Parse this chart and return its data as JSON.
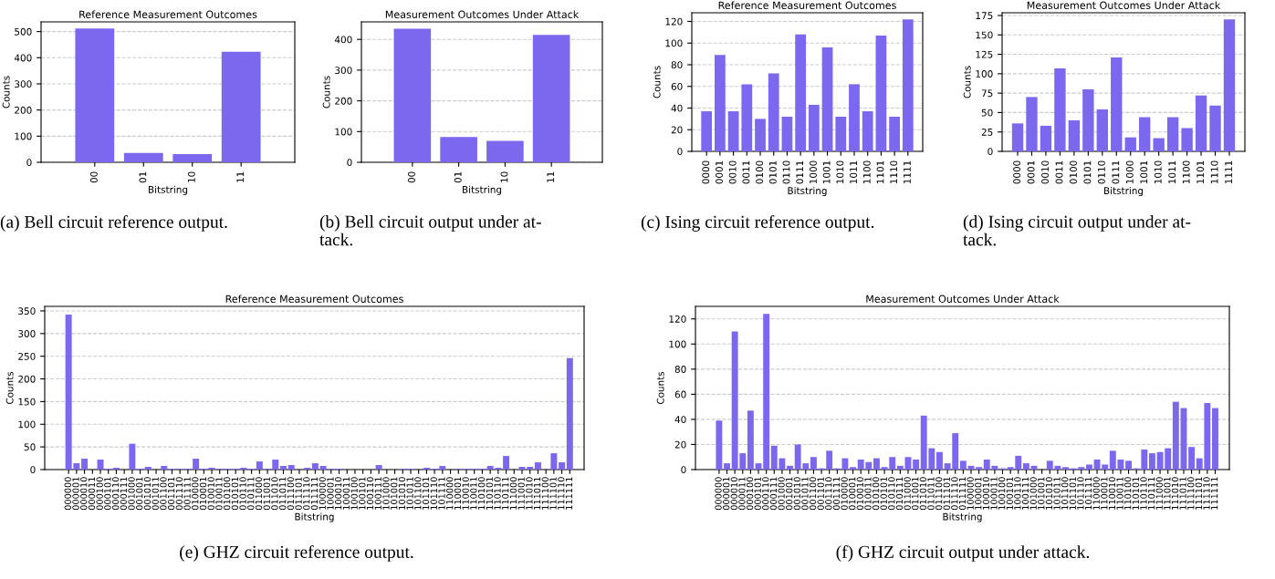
{
  "chart_data": [
    {
      "type": "bar",
      "title": "Reference Measurement Outcomes",
      "xlabel": "Bitstring",
      "ylabel": "Counts",
      "color": "#7b68ee",
      "grid": "y",
      "categories": [
        "00",
        "01",
        "10",
        "11"
      ],
      "values": [
        512,
        36,
        31,
        423
      ],
      "ylim": [
        0,
        537
      ],
      "yticks": [
        0,
        100,
        200,
        300,
        400,
        500
      ],
      "annotations": [
        "(a) Bell circuit reference output."
      ]
    },
    {
      "type": "bar",
      "title": "Measurement Outcomes Under Attack",
      "xlabel": "Bitstring",
      "ylabel": "Counts",
      "color": "#7b68ee",
      "grid": "y",
      "categories": [
        "00",
        "01",
        "10",
        "11"
      ],
      "values": [
        435,
        82,
        70,
        415
      ],
      "ylim": [
        0,
        457
      ],
      "yticks": [
        0,
        100,
        200,
        300,
        400
      ],
      "annotations": [
        "(b) Bell circuit output under at-\ntack."
      ]
    },
    {
      "type": "bar",
      "title": "Reference Measurement Outcomes",
      "xlabel": "Bitstring",
      "ylabel": "Counts",
      "color": "#7b68ee",
      "grid": "y",
      "categories": [
        "0000",
        "0001",
        "0010",
        "0011",
        "0100",
        "0101",
        "0110",
        "0111",
        "1000",
        "1001",
        "1010",
        "1011",
        "1100",
        "1101",
        "1110",
        "1111"
      ],
      "values": [
        37,
        89,
        37,
        62,
        30,
        72,
        32,
        108,
        43,
        96,
        32,
        62,
        37,
        107,
        32,
        122
      ],
      "ylim": [
        0,
        128
      ],
      "yticks": [
        0,
        20,
        40,
        60,
        80,
        100,
        120
      ],
      "annotations": [
        "(c) Ising circuit reference output."
      ]
    },
    {
      "type": "bar",
      "title": "Measurement Outcomes Under Attack",
      "xlabel": "Bitstring",
      "ylabel": "Counts",
      "color": "#7b68ee",
      "grid": "y",
      "categories": [
        "0000",
        "0001",
        "0010",
        "0011",
        "0100",
        "0101",
        "0110",
        "0111",
        "1000",
        "1001",
        "1010",
        "1011",
        "1100",
        "1101",
        "1110",
        "1111"
      ],
      "values": [
        36,
        70,
        33,
        107,
        40,
        80,
        54,
        121,
        18,
        44,
        17,
        44,
        30,
        72,
        59,
        170
      ],
      "ylim": [
        0,
        178.5
      ],
      "yticks": [
        0,
        25,
        50,
        75,
        100,
        125,
        150,
        175
      ],
      "annotations": [
        "(d) Ising circuit output under at-\ntack."
      ]
    },
    {
      "type": "bar",
      "title": "Reference Measurement Outcomes",
      "xlabel": "Bitstring",
      "ylabel": "Counts",
      "color": "#7b68ee",
      "grid": "y",
      "categories": [
        "000000",
        "000001",
        "000010",
        "000011",
        "000100",
        "000101",
        "000110",
        "000111",
        "001000",
        "001001",
        "001010",
        "001011",
        "001100",
        "001101",
        "001110",
        "001111",
        "010000",
        "010001",
        "010010",
        "010011",
        "010100",
        "010101",
        "010110",
        "010111",
        "011000",
        "011001",
        "011010",
        "011011",
        "011100",
        "011101",
        "011110",
        "011111",
        "100000",
        "100001",
        "100010",
        "100011",
        "100100",
        "100101",
        "100110",
        "100111",
        "101000",
        "101001",
        "101010",
        "101011",
        "101100",
        "101101",
        "101110",
        "101111",
        "110000",
        "110001",
        "110010",
        "110011",
        "110100",
        "110101",
        "110110",
        "110111",
        "111000",
        "111001",
        "111010",
        "111011",
        "111100",
        "111101",
        "111110",
        "111111"
      ],
      "values": [
        342,
        14,
        24,
        0,
        22,
        2,
        4,
        0,
        57,
        2,
        6,
        0,
        8,
        2,
        2,
        2,
        24,
        2,
        4,
        2,
        2,
        2,
        4,
        2,
        18,
        2,
        22,
        8,
        10,
        0,
        4,
        14,
        8,
        2,
        2,
        0,
        0,
        0,
        0,
        10,
        0,
        0,
        2,
        2,
        0,
        4,
        2,
        8,
        0,
        2,
        2,
        2,
        2,
        8,
        4,
        30,
        0,
        6,
        6,
        16,
        0,
        36,
        16,
        246
      ],
      "ylim": [
        0,
        360
      ],
      "yticks": [
        0,
        50,
        100,
        150,
        200,
        250,
        300,
        350
      ],
      "annotations": [
        "(e) GHZ circuit reference output."
      ]
    },
    {
      "type": "bar",
      "title": "Measurement Outcomes Under Attack",
      "xlabel": "Bitstring",
      "ylabel": "Counts",
      "color": "#7b68ee",
      "grid": "y",
      "categories": [
        "000000",
        "000001",
        "000010",
        "000011",
        "000100",
        "000101",
        "000110",
        "000111",
        "001000",
        "001001",
        "001010",
        "001011",
        "001100",
        "001101",
        "001110",
        "001111",
        "010000",
        "010001",
        "010010",
        "010011",
        "010100",
        "010101",
        "010110",
        "010111",
        "011000",
        "011001",
        "011010",
        "011011",
        "011100",
        "011101",
        "011110",
        "011111",
        "100000",
        "100001",
        "100010",
        "100011",
        "100100",
        "100101",
        "100110",
        "100111",
        "101000",
        "101001",
        "101010",
        "101011",
        "101100",
        "101101",
        "101110",
        "101111",
        "110000",
        "110001",
        "110010",
        "110011",
        "110100",
        "110101",
        "110110",
        "110111",
        "111000",
        "111001",
        "111010",
        "111011",
        "111100",
        "111101",
        "111110",
        "111111"
      ],
      "values": [
        39,
        5,
        110,
        13,
        47,
        5,
        124,
        19,
        9,
        3,
        20,
        5,
        10,
        1,
        15,
        1,
        9,
        2,
        8,
        6,
        9,
        2,
        10,
        3,
        10,
        8,
        43,
        17,
        14,
        5,
        29,
        7,
        3,
        2,
        8,
        3,
        1,
        2,
        11,
        5,
        3,
        0,
        7,
        3,
        2,
        1,
        2,
        4,
        8,
        4,
        15,
        8,
        7,
        1,
        16,
        13,
        14,
        17,
        54,
        49,
        18,
        9,
        53,
        49
      ],
      "ylim": [
        0,
        130
      ],
      "yticks": [
        0,
        20,
        40,
        60,
        80,
        100,
        120
      ],
      "annotations": [
        "(f) GHZ circuit output under attack."
      ]
    }
  ]
}
